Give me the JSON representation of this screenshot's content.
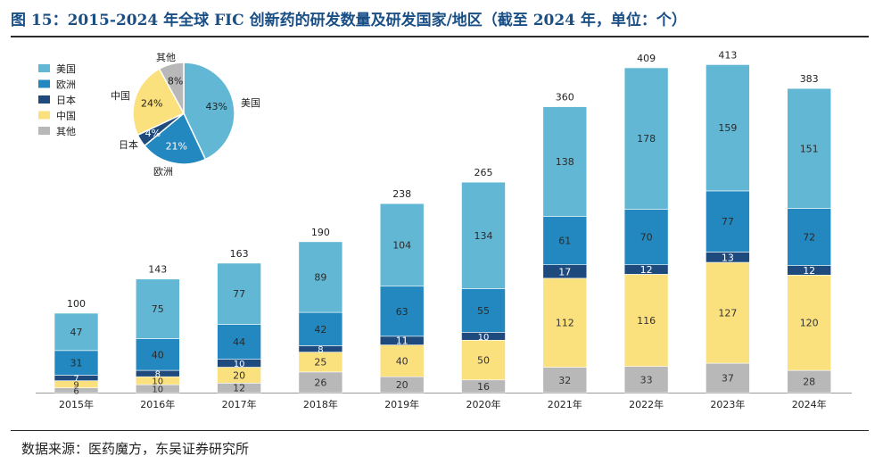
{
  "figure": {
    "title": "图 15：2015-2024 年全球 FIC 创新药的研发数量及研发国家/地区（截至 2024 年，单位：个）",
    "source": "数据来源：医药魔方，东吴证券研究所"
  },
  "colors": {
    "美国": "#62b8d4",
    "欧洲": "#2288bf",
    "日本": "#1e4a7d",
    "中国": "#fbe07e",
    "其他": "#b8b8b8"
  },
  "chart_data": [
    {
      "type": "bar",
      "stacked": true,
      "categories": [
        "2015年",
        "2016年",
        "2017年",
        "2018年",
        "2019年",
        "2020年",
        "2021年",
        "2022年",
        "2023年",
        "2024年"
      ],
      "series": [
        {
          "name": "其他",
          "values": [
            6,
            10,
            12,
            26,
            20,
            16,
            32,
            33,
            37,
            28
          ]
        },
        {
          "name": "中国",
          "values": [
            9,
            10,
            20,
            25,
            40,
            50,
            112,
            116,
            127,
            120
          ]
        },
        {
          "name": "日本",
          "values": [
            7,
            8,
            10,
            8,
            11,
            10,
            17,
            12,
            13,
            12
          ]
        },
        {
          "name": "欧洲",
          "values": [
            31,
            40,
            44,
            42,
            63,
            55,
            61,
            70,
            77,
            72
          ]
        },
        {
          "name": "美国",
          "values": [
            47,
            75,
            77,
            89,
            104,
            134,
            138,
            178,
            159,
            151
          ]
        }
      ],
      "totals": [
        100,
        143,
        163,
        190,
        238,
        265,
        360,
        409,
        413,
        383
      ],
      "legend": [
        "美国",
        "欧洲",
        "日本",
        "中国",
        "其他"
      ],
      "legend_position": "top-left",
      "ylim": [
        0,
        420
      ],
      "grid": false
    },
    {
      "type": "pie",
      "labels": [
        "美国",
        "欧洲",
        "日本",
        "中国",
        "其他"
      ],
      "values": [
        43,
        21,
        4,
        24,
        8
      ],
      "value_labels": [
        "43%",
        "21%",
        "4%",
        "24%",
        "8%"
      ]
    }
  ]
}
